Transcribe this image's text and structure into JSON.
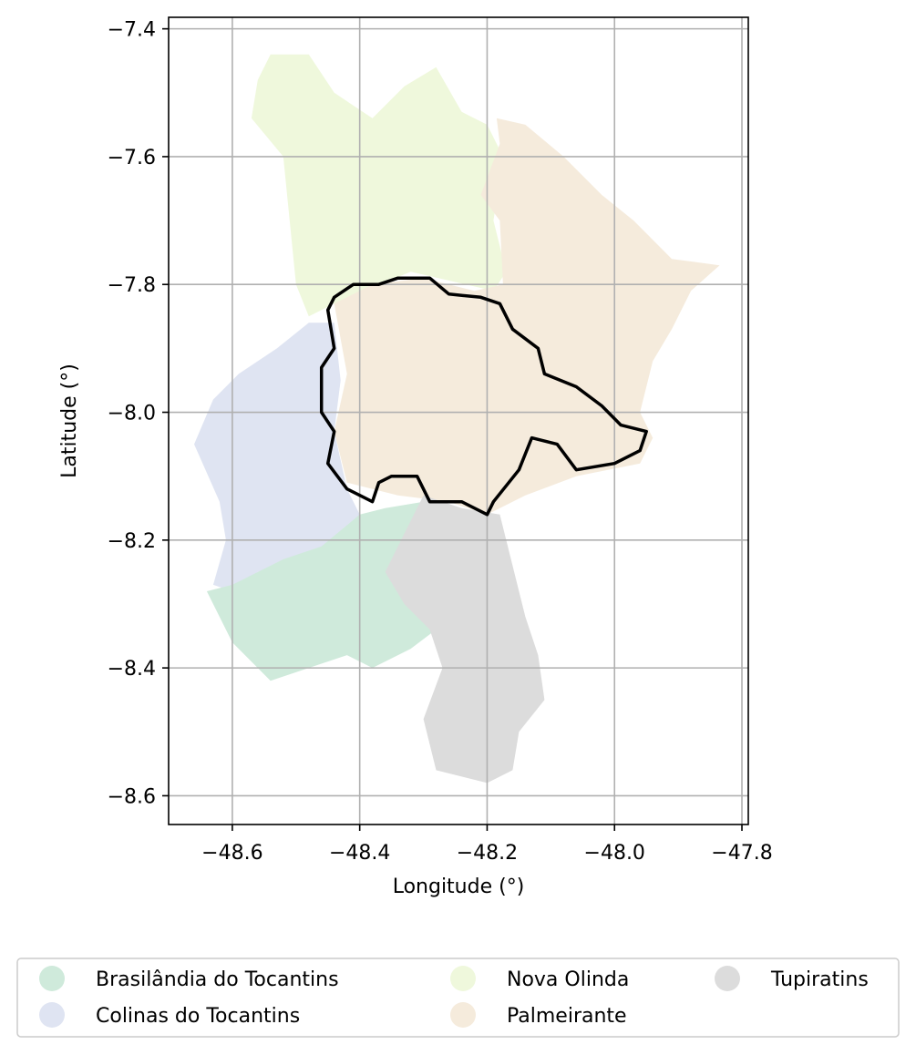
{
  "chart_data": {
    "type": "map",
    "xlabel": "Longitude (°)",
    "ylabel": "Latitude (°)",
    "xlim": [
      -48.7,
      -47.79
    ],
    "ylim": [
      -8.645,
      -7.382
    ],
    "x_ticks": [
      -48.6,
      -48.4,
      -48.2,
      -48.0,
      -47.8
    ],
    "x_tick_labels": [
      "−48.6",
      "−48.4",
      "−48.2",
      "−48.0",
      "−47.8"
    ],
    "y_ticks": [
      -7.4,
      -7.6,
      -7.8,
      -8.0,
      -8.2,
      -8.4,
      -8.6
    ],
    "y_tick_labels": [
      "−7.4",
      "−7.6",
      "−7.8",
      "−8.0",
      "−8.2",
      "−8.4",
      "−8.6"
    ],
    "grid": true,
    "legend_position": "bottom",
    "legend": [
      {
        "name": "Brasilândia do Tocantins",
        "color": "#cfeadb"
      },
      {
        "name": "Colinas do Tocantins",
        "color": "#dfe4f2"
      },
      {
        "name": "Nova Olinda",
        "color": "#eff8dc"
      },
      {
        "name": "Palmeirante",
        "color": "#f5ebdc"
      },
      {
        "name": "Tupiratins",
        "color": "#dcdcdc"
      }
    ],
    "regions": [
      {
        "name": "Nova Olinda",
        "color": "#eff8dc",
        "coords": [
          [
            -48.54,
            -7.44
          ],
          [
            -48.48,
            -7.44
          ],
          [
            -48.44,
            -7.5
          ],
          [
            -48.38,
            -7.54
          ],
          [
            -48.33,
            -7.49
          ],
          [
            -48.28,
            -7.46
          ],
          [
            -48.24,
            -7.53
          ],
          [
            -48.2,
            -7.55
          ],
          [
            -48.175,
            -7.6
          ],
          [
            -48.19,
            -7.7
          ],
          [
            -48.17,
            -7.78
          ],
          [
            -48.19,
            -7.81
          ],
          [
            -48.32,
            -7.78
          ],
          [
            -48.44,
            -7.83
          ],
          [
            -48.48,
            -7.85
          ],
          [
            -48.5,
            -7.8
          ],
          [
            -48.51,
            -7.7
          ],
          [
            -48.52,
            -7.6
          ],
          [
            -48.57,
            -7.54
          ],
          [
            -48.56,
            -7.48
          ]
        ]
      },
      {
        "name": "Palmeirante",
        "color": "#f5ebdc",
        "coords": [
          [
            -48.185,
            -7.54
          ],
          [
            -48.14,
            -7.55
          ],
          [
            -48.08,
            -7.6
          ],
          [
            -48.02,
            -7.66
          ],
          [
            -47.97,
            -7.7
          ],
          [
            -47.91,
            -7.76
          ],
          [
            -47.835,
            -7.77
          ],
          [
            -47.88,
            -7.81
          ],
          [
            -47.91,
            -7.87
          ],
          [
            -47.94,
            -7.92
          ],
          [
            -47.96,
            -8.0
          ],
          [
            -47.94,
            -8.04
          ],
          [
            -47.96,
            -8.08
          ],
          [
            -48.06,
            -8.1
          ],
          [
            -48.14,
            -8.13
          ],
          [
            -48.2,
            -8.16
          ],
          [
            -48.26,
            -8.14
          ],
          [
            -48.34,
            -8.13
          ],
          [
            -48.42,
            -8.11
          ],
          [
            -48.44,
            -8.03
          ],
          [
            -48.42,
            -7.94
          ],
          [
            -48.44,
            -7.83
          ],
          [
            -48.38,
            -7.8
          ],
          [
            -48.3,
            -7.79
          ],
          [
            -48.22,
            -7.81
          ],
          [
            -48.175,
            -7.8
          ],
          [
            -48.18,
            -7.7
          ],
          [
            -48.21,
            -7.66
          ],
          [
            -48.18,
            -7.58
          ]
        ]
      },
      {
        "name": "Colinas do Tocantins",
        "color": "#dfe4f2",
        "coords": [
          [
            -48.48,
            -7.86
          ],
          [
            -48.44,
            -7.86
          ],
          [
            -48.43,
            -7.95
          ],
          [
            -48.44,
            -8.03
          ],
          [
            -48.42,
            -8.12
          ],
          [
            -48.4,
            -8.16
          ],
          [
            -48.4,
            -8.2
          ],
          [
            -48.48,
            -8.23
          ],
          [
            -48.56,
            -8.25
          ],
          [
            -48.6,
            -8.28
          ],
          [
            -48.63,
            -8.27
          ],
          [
            -48.61,
            -8.2
          ],
          [
            -48.62,
            -8.14
          ],
          [
            -48.66,
            -8.05
          ],
          [
            -48.63,
            -7.98
          ],
          [
            -48.59,
            -7.94
          ],
          [
            -48.53,
            -7.9
          ]
        ]
      },
      {
        "name": "Brasilândia do Tocantins",
        "color": "#cfeadb",
        "coords": [
          [
            -48.4,
            -8.16
          ],
          [
            -48.36,
            -8.15
          ],
          [
            -48.3,
            -8.14
          ],
          [
            -48.34,
            -8.26
          ],
          [
            -48.28,
            -8.34
          ],
          [
            -48.32,
            -8.37
          ],
          [
            -48.38,
            -8.4
          ],
          [
            -48.42,
            -8.38
          ],
          [
            -48.48,
            -8.4
          ],
          [
            -48.54,
            -8.42
          ],
          [
            -48.6,
            -8.36
          ],
          [
            -48.64,
            -8.28
          ],
          [
            -48.6,
            -8.27
          ],
          [
            -48.52,
            -8.23
          ],
          [
            -48.46,
            -8.21
          ]
        ]
      },
      {
        "name": "Tupiratins",
        "color": "#dcdcdc",
        "coords": [
          [
            -48.3,
            -8.13
          ],
          [
            -48.24,
            -8.15
          ],
          [
            -48.18,
            -8.16
          ],
          [
            -48.16,
            -8.24
          ],
          [
            -48.14,
            -8.32
          ],
          [
            -48.12,
            -8.38
          ],
          [
            -48.11,
            -8.45
          ],
          [
            -48.15,
            -8.5
          ],
          [
            -48.16,
            -8.56
          ],
          [
            -48.2,
            -8.58
          ],
          [
            -48.28,
            -8.56
          ],
          [
            -48.3,
            -8.48
          ],
          [
            -48.27,
            -8.4
          ],
          [
            -48.29,
            -8.34
          ],
          [
            -48.33,
            -8.3
          ],
          [
            -48.36,
            -8.25
          ],
          [
            -48.32,
            -8.17
          ]
        ]
      }
    ],
    "outline": {
      "color": "#000000",
      "coords": [
        [
          -48.44,
          -7.82
        ],
        [
          -48.41,
          -7.8
        ],
        [
          -48.37,
          -7.8
        ],
        [
          -48.34,
          -7.79
        ],
        [
          -48.29,
          -7.79
        ],
        [
          -48.26,
          -7.815
        ],
        [
          -48.21,
          -7.82
        ],
        [
          -48.18,
          -7.83
        ],
        [
          -48.16,
          -7.87
        ],
        [
          -48.12,
          -7.9
        ],
        [
          -48.11,
          -7.94
        ],
        [
          -48.06,
          -7.96
        ],
        [
          -48.02,
          -7.99
        ],
        [
          -47.99,
          -8.02
        ],
        [
          -47.95,
          -8.03
        ],
        [
          -47.96,
          -8.06
        ],
        [
          -48.0,
          -8.08
        ],
        [
          -48.06,
          -8.09
        ],
        [
          -48.09,
          -8.05
        ],
        [
          -48.13,
          -8.04
        ],
        [
          -48.15,
          -8.09
        ],
        [
          -48.19,
          -8.14
        ],
        [
          -48.2,
          -8.16
        ],
        [
          -48.24,
          -8.14
        ],
        [
          -48.29,
          -8.14
        ],
        [
          -48.31,
          -8.1
        ],
        [
          -48.35,
          -8.1
        ],
        [
          -48.37,
          -8.11
        ],
        [
          -48.38,
          -8.14
        ],
        [
          -48.4,
          -8.13
        ],
        [
          -48.42,
          -8.12
        ],
        [
          -48.45,
          -8.08
        ],
        [
          -48.44,
          -8.03
        ],
        [
          -48.46,
          -8.0
        ],
        [
          -48.46,
          -7.93
        ],
        [
          -48.44,
          -7.9
        ],
        [
          -48.45,
          -7.84
        ]
      ]
    }
  }
}
